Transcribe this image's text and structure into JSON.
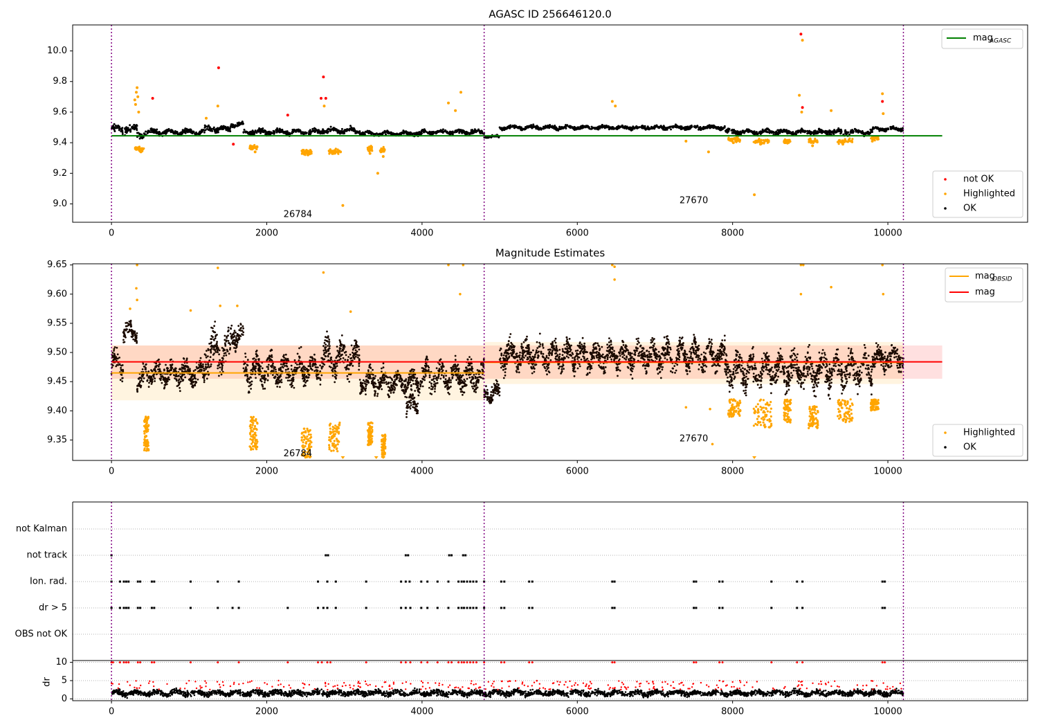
{
  "chart_data": [
    {
      "type": "scatter",
      "title": "AGASC ID 256646120.0",
      "xlim": [
        -500,
        11800
      ],
      "ylim": [
        8.88,
        10.17
      ],
      "xticks": [
        0,
        2000,
        4000,
        6000,
        8000,
        10000
      ],
      "yticks": [
        9.0,
        9.2,
        9.4,
        9.6,
        9.8,
        10.0
      ],
      "ytick_labels": [
        "9.0",
        "9.2",
        "9.4",
        "9.6",
        "9.8",
        "10.0"
      ],
      "obs_boundaries": [
        0,
        4800,
        10200
      ],
      "obs_labels": [
        {
          "text": "26784",
          "x": 2400,
          "y": 8.93
        },
        {
          "text": "27670",
          "x": 7500,
          "y": 9.02
        }
      ],
      "lines": [
        {
          "name": "mag_AGASC",
          "label_main": "mag",
          "label_sub": "AGASC",
          "color": "#008000",
          "x": [
            0,
            10700
          ],
          "y": [
            9.445,
            9.445
          ]
        }
      ],
      "segments": [
        {
          "x0": 0,
          "x1": 330,
          "mean": 9.49,
          "amp": 0.03
        },
        {
          "x0": 330,
          "x1": 420,
          "mean": 9.45,
          "amp": 0.02
        },
        {
          "x0": 420,
          "x1": 1200,
          "mean": 9.47,
          "amp": 0.02
        },
        {
          "x0": 1200,
          "x1": 1530,
          "mean": 9.49,
          "amp": 0.02
        },
        {
          "x0": 1530,
          "x1": 1700,
          "mean": 9.52,
          "amp": 0.02
        },
        {
          "x0": 1700,
          "x1": 2700,
          "mean": 9.47,
          "amp": 0.02
        },
        {
          "x0": 2700,
          "x1": 3200,
          "mean": 9.48,
          "amp": 0.02
        },
        {
          "x0": 3200,
          "x1": 4000,
          "mean": 9.46,
          "amp": 0.015
        },
        {
          "x0": 4000,
          "x1": 4800,
          "mean": 9.47,
          "amp": 0.015
        },
        {
          "x0": 4800,
          "x1": 5000,
          "mean": 9.44,
          "amp": 0.01
        },
        {
          "x0": 5000,
          "x1": 7900,
          "mean": 9.5,
          "amp": 0.015
        },
        {
          "x0": 7900,
          "x1": 8700,
          "mean": 9.47,
          "amp": 0.02
        },
        {
          "x0": 8700,
          "x1": 9800,
          "mean": 9.47,
          "amp": 0.02
        },
        {
          "x0": 9800,
          "x1": 10200,
          "mean": 9.49,
          "amp": 0.015
        }
      ],
      "series": [
        {
          "name": "not OK",
          "color": "#ff0000",
          "points": [
            [
              1380,
              9.89
            ],
            [
              2730,
              9.83
            ],
            [
              2700,
              9.69
            ],
            [
              2760,
              9.69
            ],
            [
              530,
              9.69
            ],
            [
              2270,
              9.58
            ],
            [
              1570,
              9.39
            ],
            [
              8880,
              10.11
            ],
            [
              8900,
              9.63
            ],
            [
              9930,
              9.67
            ]
          ]
        },
        {
          "name": "Highlighted",
          "color": "#ffa500",
          "points": [
            [
              330,
              9.76
            ],
            [
              320,
              9.73
            ],
            [
              340,
              9.7
            ],
            [
              300,
              9.68
            ],
            [
              310,
              9.65
            ],
            [
              350,
              9.6
            ],
            [
              360,
              9.35
            ],
            [
              400,
              9.36
            ],
            [
              380,
              9.34
            ],
            [
              1370,
              9.64
            ],
            [
              1220,
              9.56
            ],
            [
              1800,
              9.36
            ],
            [
              1850,
              9.34
            ],
            [
              2480,
              9.33
            ],
            [
              2530,
              9.32
            ],
            [
              2740,
              9.64
            ],
            [
              2860,
              9.33
            ],
            [
              2950,
              9.34
            ],
            [
              3330,
              9.33
            ],
            [
              3500,
              9.31
            ],
            [
              3430,
              9.2
            ],
            [
              2980,
              8.99
            ],
            [
              4340,
              9.66
            ],
            [
              4500,
              9.73
            ],
            [
              4430,
              9.61
            ],
            [
              6450,
              9.67
            ],
            [
              6490,
              9.64
            ],
            [
              7400,
              9.41
            ],
            [
              7690,
              9.34
            ],
            [
              8010,
              9.4
            ],
            [
              8280,
              9.06
            ],
            [
              8360,
              9.39
            ],
            [
              8680,
              9.4
            ],
            [
              8860,
              9.71
            ],
            [
              8890,
              9.6
            ],
            [
              8900,
              10.07
            ],
            [
              9030,
              9.38
            ],
            [
              9270,
              9.61
            ],
            [
              9930,
              9.72
            ],
            [
              9940,
              9.59
            ],
            [
              9420,
              9.39
            ],
            [
              9800,
              9.41
            ]
          ]
        }
      ],
      "legends": [
        {
          "placement": "top-right",
          "entries": [
            "mag_AGASC"
          ]
        },
        {
          "placement": "bottom-right",
          "entries": [
            "not OK",
            "Highlighted",
            "OK"
          ]
        }
      ],
      "legend_labels": {
        "not_ok": "not OK",
        "highlighted": "Highlighted",
        "ok": "OK"
      }
    },
    {
      "type": "scatter",
      "title": "Magnitude Estimates",
      "xlim": [
        -500,
        11800
      ],
      "ylim": [
        9.315,
        9.652
      ],
      "xticks": [
        0,
        2000,
        4000,
        6000,
        8000,
        10000
      ],
      "yticks": [
        9.35,
        9.4,
        9.45,
        9.5,
        9.55,
        9.6,
        9.65
      ],
      "ytick_labels": [
        "9.35",
        "9.40",
        "9.45",
        "9.50",
        "9.55",
        "9.60",
        "9.65"
      ],
      "obs_boundaries": [
        0,
        4800,
        10200
      ],
      "obs_labels": [
        {
          "text": "26784",
          "x": 2400,
          "y": 9.326
        },
        {
          "text": "27670",
          "x": 7500,
          "y": 9.352
        }
      ],
      "bands": [
        {
          "name": "mag_band",
          "color": "#ff0000",
          "opacity": 0.12,
          "x0": 0,
          "x1": 10700,
          "y0": 9.455,
          "y1": 9.512
        },
        {
          "name": "obs1_band",
          "color": "#ffa500",
          "opacity": 0.12,
          "x0": 0,
          "x1": 4800,
          "y0": 9.418,
          "y1": 9.512
        },
        {
          "name": "obs2_band",
          "color": "#ffa500",
          "opacity": 0.12,
          "x0": 4800,
          "x1": 10200,
          "y0": 9.446,
          "y1": 9.518
        }
      ],
      "lines": [
        {
          "name": "mag_OBSID_1",
          "label_main": "mag",
          "label_sub": "OBSID",
          "color": "#ffa500",
          "x": [
            0,
            4800
          ],
          "y": [
            9.465,
            9.465
          ]
        },
        {
          "name": "mag_OBSID_2",
          "color": "#ffa500",
          "x": [
            4800,
            10200
          ],
          "y": [
            9.483,
            9.483
          ]
        },
        {
          "name": "mag",
          "label_main": "mag",
          "color": "#ff0000",
          "x": [
            0,
            10700
          ],
          "y": [
            9.484,
            9.484
          ]
        }
      ],
      "segments": [
        {
          "x0": 0,
          "x1": 150,
          "mean": 9.48,
          "amp": 0.02
        },
        {
          "x0": 150,
          "x1": 330,
          "mean": 9.535,
          "amp": 0.015
        },
        {
          "x0": 330,
          "x1": 420,
          "mean": 9.45,
          "amp": 0.02
        },
        {
          "x0": 420,
          "x1": 1200,
          "mean": 9.465,
          "amp": 0.02
        },
        {
          "x0": 1200,
          "x1": 1530,
          "mean": 9.5,
          "amp": 0.035
        },
        {
          "x0": 1530,
          "x1": 1700,
          "mean": 9.53,
          "amp": 0.02
        },
        {
          "x0": 1700,
          "x1": 2700,
          "mean": 9.47,
          "amp": 0.025
        },
        {
          "x0": 2700,
          "x1": 3200,
          "mean": 9.49,
          "amp": 0.03
        },
        {
          "x0": 3200,
          "x1": 4000,
          "mean": 9.45,
          "amp": 0.02
        },
        {
          "x0": 3800,
          "x1": 3950,
          "mean": 9.41,
          "amp": 0.02
        },
        {
          "x0": 4000,
          "x1": 4800,
          "mean": 9.46,
          "amp": 0.025
        },
        {
          "x0": 4800,
          "x1": 5000,
          "mean": 9.43,
          "amp": 0.015
        },
        {
          "x0": 5000,
          "x1": 7900,
          "mean": 9.495,
          "amp": 0.025
        },
        {
          "x0": 7900,
          "x1": 8700,
          "mean": 9.47,
          "amp": 0.03
        },
        {
          "x0": 8700,
          "x1": 9800,
          "mean": 9.47,
          "amp": 0.03
        },
        {
          "x0": 9800,
          "x1": 10200,
          "mean": 9.49,
          "amp": 0.02
        }
      ],
      "series": [
        {
          "name": "Highlighted",
          "color": "#ffa500",
          "points": [
            [
              330,
              9.65
            ],
            [
              320,
              9.61
            ],
            [
              330,
              9.59
            ],
            [
              240,
              9.575
            ],
            [
              1370,
              9.645
            ],
            [
              1020,
              9.572
            ],
            [
              1400,
              9.58
            ],
            [
              1620,
              9.58
            ],
            [
              2730,
              9.637
            ],
            [
              3080,
              9.57
            ],
            [
              4340,
              9.65
            ],
            [
              4530,
              9.65
            ],
            [
              4490,
              9.6
            ],
            [
              6450,
              9.65
            ],
            [
              6480,
              9.647
            ],
            [
              6480,
              9.625
            ],
            [
              7400,
              9.406
            ],
            [
              7710,
              9.403
            ],
            [
              7740,
              9.343
            ],
            [
              8880,
              9.65
            ],
            [
              8910,
              9.65
            ],
            [
              8880,
              9.6
            ],
            [
              9270,
              9.612
            ],
            [
              9930,
              9.65
            ],
            [
              9940,
              9.6
            ]
          ]
        }
      ],
      "clusters": [
        {
          "x0": 420,
          "x1": 480,
          "ymin": 9.33,
          "ymax": 9.39
        },
        {
          "x0": 1780,
          "x1": 1880,
          "ymin": 9.33,
          "ymax": 9.39
        },
        {
          "x0": 2450,
          "x1": 2580,
          "ymin": 9.32,
          "ymax": 9.37
        },
        {
          "x0": 2800,
          "x1": 2940,
          "ymin": 9.33,
          "ymax": 9.38
        },
        {
          "x0": 3300,
          "x1": 3360,
          "ymin": 9.34,
          "ymax": 9.38
        },
        {
          "x0": 3480,
          "x1": 3530,
          "ymin": 9.32,
          "ymax": 9.36
        },
        {
          "x0": 7940,
          "x1": 8100,
          "ymin": 9.39,
          "ymax": 9.42
        },
        {
          "x0": 8270,
          "x1": 8500,
          "ymin": 9.37,
          "ymax": 9.42
        },
        {
          "x0": 8660,
          "x1": 8750,
          "ymin": 9.38,
          "ymax": 9.42
        },
        {
          "x0": 8980,
          "x1": 9100,
          "ymin": 9.37,
          "ymax": 9.41
        },
        {
          "x0": 9350,
          "x1": 9550,
          "ymin": 9.38,
          "ymax": 9.42
        },
        {
          "x0": 9780,
          "x1": 9880,
          "ymin": 9.4,
          "ymax": 9.42
        }
      ],
      "legends": [
        {
          "placement": "top-right",
          "entries": [
            "mag_OBSID",
            "mag"
          ]
        },
        {
          "placement": "bottom-right",
          "entries": [
            "Highlighted",
            "OK"
          ]
        }
      ],
      "legend_labels": {
        "highlighted": "Highlighted",
        "ok": "OK"
      }
    },
    {
      "type": "scatter",
      "title": "",
      "xlim": [
        -500,
        11800
      ],
      "flag_rows": [
        "not Kalman",
        "not track",
        "Ion. rad.",
        "dr > 5",
        "OBS not OK"
      ],
      "obs_boundaries": [
        0,
        4800,
        10200
      ],
      "flags": {
        "not track": [
          0,
          2760,
          2790,
          3790,
          3820,
          4350,
          4380,
          4530,
          4560
        ],
        "Ion. rad.": [
          0,
          110,
          160,
          190,
          220,
          340,
          370,
          520,
          550,
          1020,
          1370,
          1640,
          2660,
          2780,
          2890,
          3280,
          3730,
          3790,
          3840,
          3990,
          4070,
          4200,
          4340,
          4470,
          4510,
          4540,
          4580,
          4620,
          4660,
          4700,
          4800,
          5020,
          5060,
          5380,
          5420,
          6450,
          6480,
          7500,
          7530,
          7830,
          7870,
          8500,
          8830,
          8900,
          9930,
          9960
        ],
        "dr > 5": [
          0,
          110,
          160,
          190,
          220,
          340,
          370,
          520,
          550,
          1020,
          1370,
          1560,
          1640,
          2270,
          2660,
          2730,
          2780,
          2890,
          3280,
          3730,
          3790,
          3850,
          3990,
          4070,
          4200,
          4340,
          4470,
          4510,
          4540,
          4580,
          4620,
          4660,
          4700,
          4800,
          5020,
          5060,
          5380,
          5420,
          6450,
          6480,
          7500,
          7530,
          7830,
          7870,
          8500,
          8830,
          8900,
          9930,
          9960
        ]
      }
    },
    {
      "type": "scatter",
      "title": "",
      "ylabel": "dr",
      "xlim": [
        -500,
        11800
      ],
      "ylim": [
        -0.5,
        10.5
      ],
      "xticks": [
        0,
        2000,
        4000,
        6000,
        8000,
        10000
      ],
      "yticks": [
        0,
        5,
        10
      ],
      "ytick_labels": [
        "0",
        "5",
        "10"
      ],
      "obs_boundaries": [
        0,
        4800,
        10200
      ],
      "high_dr_x": [
        0,
        20,
        110,
        160,
        190,
        220,
        340,
        370,
        520,
        550,
        1020,
        1370,
        1640,
        2270,
        2660,
        2710,
        2780,
        2820,
        3280,
        3730,
        3790,
        3850,
        3990,
        4070,
        4200,
        4340,
        4380,
        4470,
        4510,
        4540,
        4580,
        4620,
        4660,
        4700,
        4800,
        5020,
        5060,
        5380,
        5420,
        6450,
        6480,
        7500,
        7530,
        7830,
        7870,
        8500,
        8830,
        8900,
        9930,
        9960
      ]
    }
  ]
}
